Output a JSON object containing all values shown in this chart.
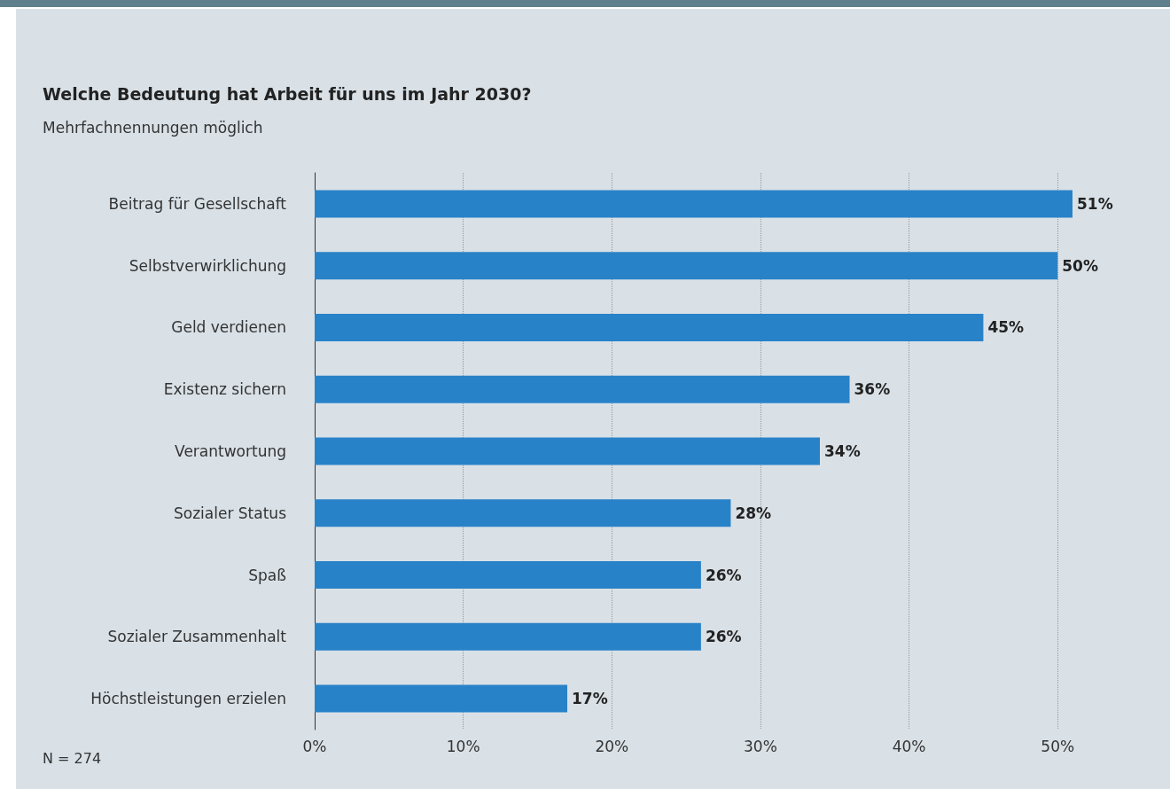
{
  "chart_data": {
    "type": "bar",
    "orientation": "horizontal",
    "title": "Welche Bedeutung hat Arbeit für uns im Jahr 2030?",
    "subtitle": "Mehrfachnennungen möglich",
    "categories": [
      "Beitrag für Gesellschaft",
      "Selbstverwirklichung",
      "Geld verdienen",
      "Existenz sichern",
      "Verantwortung",
      "Sozialer Status",
      "Spaß",
      "Sozialer Zusammenhalt",
      "Höchstleistungen erzielen"
    ],
    "values": [
      51,
      50,
      45,
      36,
      34,
      28,
      26,
      26,
      17
    ],
    "value_labels": [
      "51%",
      "50%",
      "45%",
      "36%",
      "34%",
      "28%",
      "26%",
      "26%",
      "17%"
    ],
    "color": "#2882c8",
    "xticks": [
      {
        "value": 0,
        "label": "0%"
      },
      {
        "value": 10,
        "label": "10%"
      },
      {
        "value": 20,
        "label": "20%"
      },
      {
        "value": 30,
        "label": "30%"
      },
      {
        "value": 40,
        "label": "40%"
      },
      {
        "value": 50,
        "label": "50%"
      }
    ],
    "xlim": [
      0,
      51
    ],
    "grid": "x",
    "annotations": [
      "N = 274"
    ]
  }
}
